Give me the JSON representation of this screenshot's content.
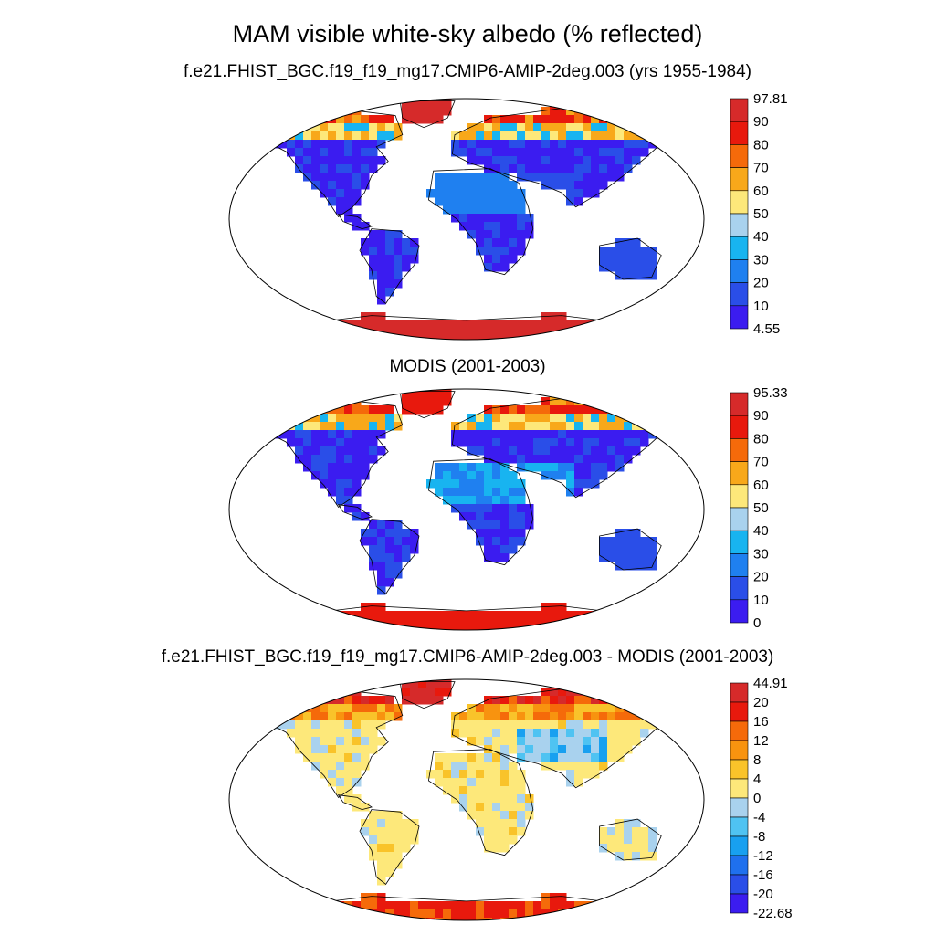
{
  "title": "MAM visible white-sky albedo (% reflected)",
  "panels": [
    {
      "title": "f.e21.FHIST_BGC.f19_f19_mg17.CMIP6-AMIP-2deg.003 (yrs 1955-1984)",
      "colorbar": {
        "labels": [
          "97.81",
          "90",
          "80",
          "70",
          "60",
          "50",
          "40",
          "30",
          "20",
          "10",
          "4.55"
        ],
        "colors": [
          "#d62a2a",
          "#e8190d",
          "#f56a0a",
          "#f8a81a",
          "#fde87a",
          "#a9d2ee",
          "#18b4f0",
          "#1f80f0",
          "#2a4ee8",
          "#3b1cf0"
        ]
      }
    },
    {
      "title": "MODIS (2001-2003)",
      "colorbar": {
        "labels": [
          "95.33",
          "90",
          "80",
          "70",
          "60",
          "50",
          "40",
          "30",
          "20",
          "10",
          "0"
        ],
        "colors": [
          "#d62a2a",
          "#e8190d",
          "#f56a0a",
          "#f8a81a",
          "#fde87a",
          "#a9d2ee",
          "#18b4f0",
          "#1f80f0",
          "#2a4ee8",
          "#3b1cf0"
        ]
      }
    },
    {
      "title": "f.e21.FHIST_BGC.f19_f19_mg17.CMIP6-AMIP-2deg.003 - MODIS (2001-2003)",
      "colorbar": {
        "labels": [
          "44.91",
          "20",
          "16",
          "12",
          "8",
          "4",
          "0",
          "-4",
          "-8",
          "-12",
          "-16",
          "-20",
          "-22.68"
        ],
        "colors": [
          "#d62a2a",
          "#e8190d",
          "#f56a0a",
          "#f8930f",
          "#f9c32a",
          "#fde87a",
          "#a9d2ee",
          "#4fc3f2",
          "#18a0f0",
          "#1f70ee",
          "#2a4ee8",
          "#3b1cf0"
        ]
      }
    }
  ]
}
